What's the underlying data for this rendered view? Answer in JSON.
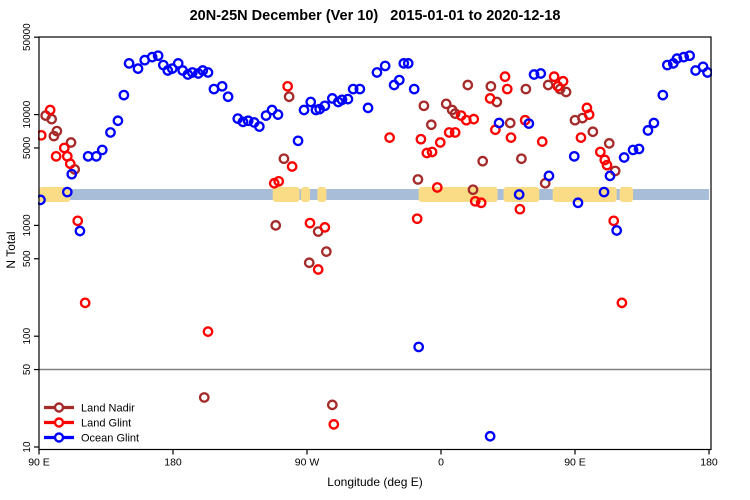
{
  "chart_data": {
    "type": "scatter",
    "title": "20N-25N December (Ver 10)   2015-01-01 to 2020-12-18",
    "xlabel": "Longitude (deg E)",
    "ylabel": "N Total",
    "y_scale": "log",
    "x_range": [
      90,
      540
    ],
    "y_range": [
      10,
      50000
    ],
    "grid": false,
    "legend_position": "bottom-left",
    "x_ticks": [
      {
        "value": 90,
        "label": "90 E"
      },
      {
        "value": 180,
        "label": "180"
      },
      {
        "value": 270,
        "label": "90 W"
      },
      {
        "value": 360,
        "label": "0"
      },
      {
        "value": 450,
        "label": "90 E"
      },
      {
        "value": 540,
        "label": "180"
      }
    ],
    "y_ticks": [
      {
        "value": 50000,
        "label": "50000"
      },
      {
        "value": 10000,
        "label": "10000"
      },
      {
        "value": 5000,
        "label": "5000"
      },
      {
        "value": 1000,
        "label": "1000"
      },
      {
        "value": 500,
        "label": "500"
      },
      {
        "value": 100,
        "label": "100"
      },
      {
        "value": 50,
        "label": "50"
      },
      {
        "value": 10,
        "label": "10"
      }
    ],
    "reference_line_y": 50,
    "reference_line_color": "#808080",
    "series": [
      {
        "name": "Land Nadir",
        "color": "#A52A2A",
        "points": [
          [
            94.5,
            9800
          ],
          [
            98.5,
            9100
          ],
          [
            102,
            7100
          ],
          [
            100,
            6400
          ],
          [
            111.5,
            5600
          ],
          [
            114,
            3200
          ],
          [
            201,
            28
          ],
          [
            258,
            14500
          ],
          [
            254.5,
            4000
          ],
          [
            249,
            1000
          ],
          [
            277.5,
            880
          ],
          [
            283,
            580
          ],
          [
            271.5,
            460
          ],
          [
            287,
            24
          ],
          [
            348.5,
            12000
          ],
          [
            353.5,
            8100
          ],
          [
            363.5,
            12500
          ],
          [
            367.5,
            11000
          ],
          [
            369.5,
            10200
          ],
          [
            344.5,
            2600
          ],
          [
            378,
            18500
          ],
          [
            381.5,
            2100
          ],
          [
            388,
            3800
          ],
          [
            393.5,
            18000
          ],
          [
            397.5,
            13000
          ],
          [
            406.5,
            8400
          ],
          [
            414,
            4000
          ],
          [
            417,
            17000
          ],
          [
            432,
            18500
          ],
          [
            430,
            2400
          ],
          [
            440,
            17000
          ],
          [
            444,
            16000
          ],
          [
            450,
            8900
          ],
          [
            455,
            9300
          ],
          [
            462,
            7000
          ],
          [
            473,
            5500
          ],
          [
            477,
            3100
          ]
        ]
      },
      {
        "name": "Land Glint",
        "color": "#FF0000",
        "points": [
          [
            97.5,
            11000
          ],
          [
            91.5,
            6500
          ],
          [
            107,
            5000
          ],
          [
            101.5,
            4200
          ],
          [
            109,
            4200
          ],
          [
            111,
            3600
          ],
          [
            116,
            1100
          ],
          [
            121,
            200
          ],
          [
            203.5,
            110
          ],
          [
            257,
            18000
          ],
          [
            260,
            3400
          ],
          [
            251,
            2500
          ],
          [
            248,
            2400
          ],
          [
            272,
            1050
          ],
          [
            282,
            960
          ],
          [
            277.5,
            400
          ],
          [
            288,
            16
          ],
          [
            325.5,
            6200
          ],
          [
            346.5,
            6000
          ],
          [
            350.5,
            4500
          ],
          [
            354,
            4600
          ],
          [
            357.5,
            2200
          ],
          [
            344,
            1150
          ],
          [
            359.5,
            5600
          ],
          [
            365.5,
            6900
          ],
          [
            369.5,
            6900
          ],
          [
            373.5,
            9800
          ],
          [
            377,
            8900
          ],
          [
            382,
            9100
          ],
          [
            383,
            1650
          ],
          [
            387,
            1600
          ],
          [
            413,
            1400
          ],
          [
            393,
            14000
          ],
          [
            396.5,
            7300
          ],
          [
            403,
            22000
          ],
          [
            404.5,
            17000
          ],
          [
            407,
            6200
          ],
          [
            416.5,
            8900
          ],
          [
            428,
            5700
          ],
          [
            436,
            22000
          ],
          [
            438.5,
            18000
          ],
          [
            442,
            20000
          ],
          [
            458,
            11500
          ],
          [
            459.5,
            10000
          ],
          [
            454,
            6200
          ],
          [
            467,
            4600
          ],
          [
            470,
            3900
          ],
          [
            471.5,
            3500
          ],
          [
            476,
            1100
          ],
          [
            481.5,
            200
          ]
        ]
      },
      {
        "name": "Ocean Glint",
        "color": "#0000FF",
        "points": [
          [
            150.5,
            29000
          ],
          [
            156.5,
            26000
          ],
          [
            161,
            31000
          ],
          [
            166,
            33000
          ],
          [
            170,
            34000
          ],
          [
            173.5,
            28000
          ],
          [
            176.5,
            25000
          ],
          [
            179.5,
            26000
          ],
          [
            183.5,
            29000
          ],
          [
            186.5,
            25000
          ],
          [
            190,
            23000
          ],
          [
            193,
            24000
          ],
          [
            197,
            23500
          ],
          [
            200,
            25000
          ],
          [
            203.5,
            24000
          ],
          [
            207.5,
            17000
          ],
          [
            213,
            18000
          ],
          [
            217,
            14500
          ],
          [
            223.5,
            9200
          ],
          [
            227,
            8600
          ],
          [
            230.5,
            8800
          ],
          [
            234.5,
            8500
          ],
          [
            238,
            7800
          ],
          [
            242.5,
            9800
          ],
          [
            246.5,
            11000
          ],
          [
            250.5,
            10000
          ],
          [
            264,
            5800
          ],
          [
            268,
            11000
          ],
          [
            272.5,
            13000
          ],
          [
            276,
            11000
          ],
          [
            278.5,
            11200
          ],
          [
            282,
            12000
          ],
          [
            287,
            14000
          ],
          [
            291,
            13000
          ],
          [
            293.5,
            13600
          ],
          [
            297.5,
            13800
          ],
          [
            301,
            17000
          ],
          [
            305.5,
            17000
          ],
          [
            311,
            11500
          ],
          [
            317,
            24000
          ],
          [
            322.5,
            27500
          ],
          [
            328.5,
            18500
          ],
          [
            332,
            20500
          ],
          [
            335,
            29000
          ],
          [
            338,
            29000
          ],
          [
            342,
            17000
          ],
          [
            147,
            15000
          ],
          [
            143,
            8800
          ],
          [
            138,
            6900
          ],
          [
            132.5,
            4800
          ],
          [
            128.5,
            4200
          ],
          [
            123,
            4200
          ],
          [
            112,
            2900
          ],
          [
            109,
            2000
          ],
          [
            91,
            1700
          ],
          [
            117.5,
            890
          ],
          [
            399,
            8400
          ],
          [
            419,
            8300
          ],
          [
            422.5,
            23000
          ],
          [
            427,
            23500
          ],
          [
            412.5,
            1900
          ],
          [
            432.5,
            2800
          ],
          [
            449.5,
            4200
          ],
          [
            452,
            1600
          ],
          [
            469.5,
            2000
          ],
          [
            473.5,
            2800
          ],
          [
            478,
            900
          ],
          [
            483,
            4100
          ],
          [
            489,
            4800
          ],
          [
            493,
            4900
          ],
          [
            499,
            7200
          ],
          [
            503,
            8400
          ],
          [
            509,
            15000
          ],
          [
            512,
            28000
          ],
          [
            516,
            29000
          ],
          [
            518.5,
            32000
          ],
          [
            523,
            33000
          ],
          [
            527,
            34000
          ],
          [
            531,
            25000
          ],
          [
            536,
            27000
          ],
          [
            539,
            24000
          ],
          [
            345,
            80
          ],
          [
            393,
            12.5
          ]
        ]
      }
    ]
  },
  "map_strip": {
    "description": "land/ocean strip for latitude band",
    "ocean_color": "#A8BED8",
    "land_color": "#FADC87",
    "center_n": 1900,
    "ocean_segments": [
      [
        90,
        540
      ]
    ],
    "land_segments": [
      [
        90,
        111
      ],
      [
        247,
        265
      ],
      [
        266,
        272
      ],
      [
        277,
        283
      ],
      [
        345,
        398
      ],
      [
        402,
        426
      ],
      [
        435,
        478
      ],
      [
        480,
        489
      ]
    ]
  }
}
